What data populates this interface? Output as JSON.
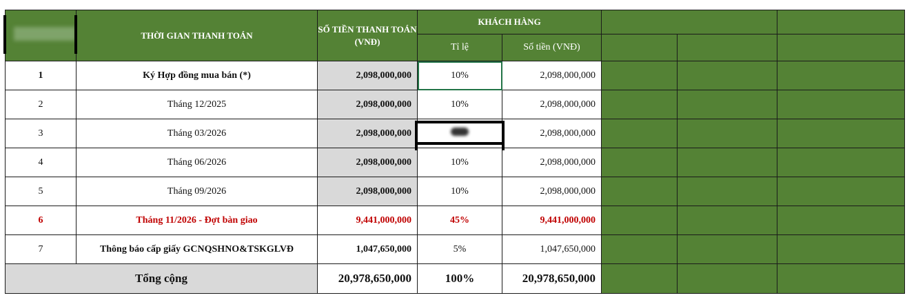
{
  "header": {
    "time_col": "THỜI GIAN THANH TOÁN",
    "amount_col": "SỐ TIỀN THANH TOÁN (VNĐ)",
    "customer_group": "KHÁCH HÀNG",
    "ratio_col": "Tỉ lệ",
    "customer_amount_col": "Số  tiền (VNĐ)"
  },
  "rows": [
    {
      "no": "1",
      "time": "Ký Hợp đồng mua bán (*)",
      "amount": "2,098,000,000",
      "ratio": "10%",
      "customer_amount": "2,098,000,000"
    },
    {
      "no": "2",
      "time": "Tháng 12/2025",
      "amount": "2,098,000,000",
      "ratio": "10%",
      "customer_amount": "2,098,000,000"
    },
    {
      "no": "3",
      "time": "Tháng 03/2026",
      "amount": "2,098,000,000",
      "ratio": "",
      "customer_amount": "2,098,000,000"
    },
    {
      "no": "4",
      "time": "Tháng 06/2026",
      "amount": "2,098,000,000",
      "ratio": "10%",
      "customer_amount": "2,098,000,000"
    },
    {
      "no": "5",
      "time": "Tháng 09/2026",
      "amount": "2,098,000,000",
      "ratio": "10%",
      "customer_amount": "2,098,000,000"
    },
    {
      "no": "6",
      "time": "Tháng 11/2026 - Đợt bàn giao",
      "amount": "9,441,000,000",
      "ratio": "45%",
      "customer_amount": "9,441,000,000"
    },
    {
      "no": "7",
      "time": "Thông báo cấp giấy GCNQSHNO&TSKGLVĐ",
      "amount": "1,047,650,000",
      "ratio": "5%",
      "customer_amount": "1,047,650,000"
    }
  ],
  "total": {
    "label": "Tổng cộng",
    "amount": "20,978,650,000",
    "ratio": "100%",
    "customer_amount": "20,978,650,000"
  },
  "colors": {
    "header_green": "#548235",
    "grey_fill": "#d9d9d9",
    "highlight_red": "#c00000",
    "selection_green": "#217346"
  }
}
